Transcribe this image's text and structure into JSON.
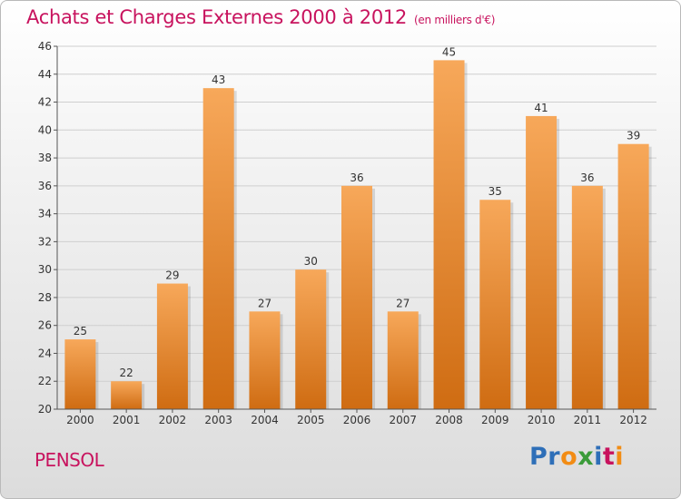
{
  "title": "Achats et Charges Externes 2000 à 2012",
  "unit": "(en milliers d'€)",
  "commune": "PENSOL",
  "brand": {
    "letters": [
      "P",
      "r",
      "o",
      "x",
      "i",
      "t",
      "i"
    ],
    "colors": [
      "#2e6fb8",
      "#2e6fb8",
      "#f28c14",
      "#3a9b39",
      "#2e6fb8",
      "#c8135e",
      "#f28c14"
    ]
  },
  "colors": {
    "bar_light": "#f7a85a",
    "bar_dark": "#cf6c12",
    "title": "#c8135e",
    "grid": "#cfcfcf"
  },
  "chart_data": {
    "type": "bar",
    "categories": [
      "2000",
      "2001",
      "2002",
      "2003",
      "2004",
      "2005",
      "2006",
      "2007",
      "2008",
      "2009",
      "2010",
      "2011",
      "2012"
    ],
    "values": [
      25,
      22,
      29,
      43,
      27,
      30,
      36,
      27,
      45,
      35,
      41,
      36,
      39
    ],
    "ylim": [
      20,
      46
    ],
    "yticks": [
      20,
      22,
      24,
      26,
      28,
      30,
      32,
      34,
      36,
      38,
      40,
      42,
      44,
      46
    ],
    "grid": true
  }
}
